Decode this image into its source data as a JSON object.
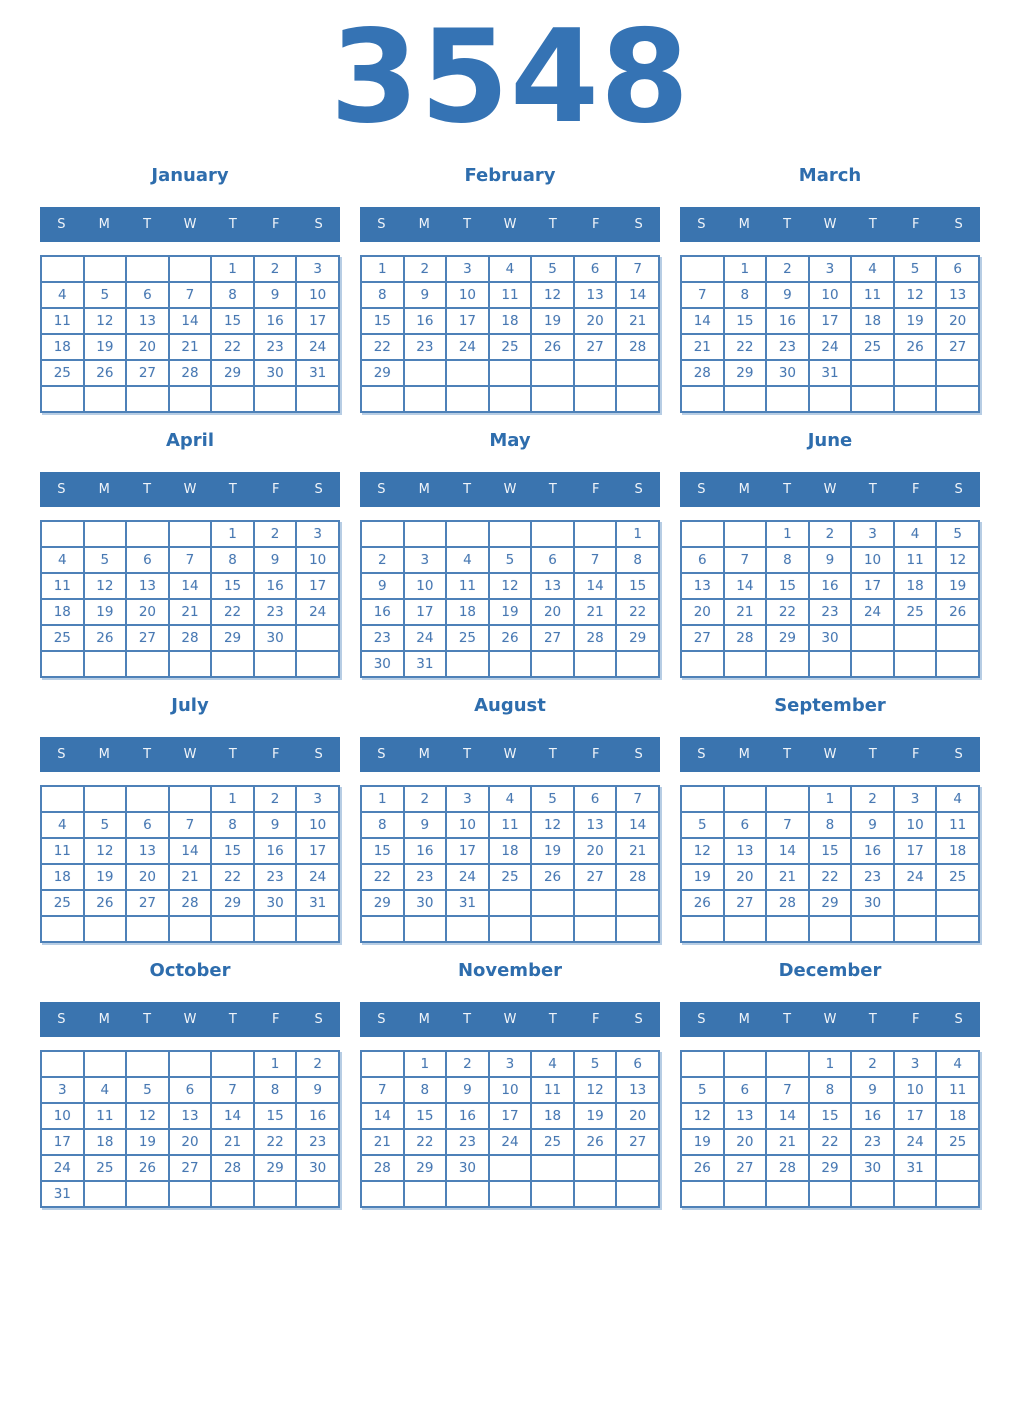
{
  "year": "3548",
  "weekday_headers": [
    "S",
    "M",
    "T",
    "W",
    "T",
    "F",
    "S"
  ],
  "colors": {
    "accent": "#3573b4",
    "month": "#2e6dad",
    "bar": "#3a74af",
    "bartext": "#f0f4f9",
    "border": "#4e81b8",
    "num": "#4878b2",
    "shadow": "#b7cde4"
  },
  "months": [
    {
      "name": "January",
      "weeks": [
        [
          "",
          "",
          "",
          "",
          "1",
          "2",
          "3"
        ],
        [
          "4",
          "5",
          "6",
          "7",
          "8",
          "9",
          "10"
        ],
        [
          "11",
          "12",
          "13",
          "14",
          "15",
          "16",
          "17"
        ],
        [
          "18",
          "19",
          "20",
          "21",
          "22",
          "23",
          "24"
        ],
        [
          "25",
          "26",
          "27",
          "28",
          "29",
          "30",
          "31"
        ],
        [
          "",
          "",
          "",
          "",
          "",
          "",
          ""
        ]
      ]
    },
    {
      "name": "February",
      "weeks": [
        [
          "1",
          "2",
          "3",
          "4",
          "5",
          "6",
          "7"
        ],
        [
          "8",
          "9",
          "10",
          "11",
          "12",
          "13",
          "14"
        ],
        [
          "15",
          "16",
          "17",
          "18",
          "19",
          "20",
          "21"
        ],
        [
          "22",
          "23",
          "24",
          "25",
          "26",
          "27",
          "28"
        ],
        [
          "29",
          "",
          "",
          "",
          "",
          "",
          ""
        ],
        [
          "",
          "",
          "",
          "",
          "",
          "",
          ""
        ]
      ]
    },
    {
      "name": "March",
      "weeks": [
        [
          "",
          "1",
          "2",
          "3",
          "4",
          "5",
          "6"
        ],
        [
          "7",
          "8",
          "9",
          "10",
          "11",
          "12",
          "13"
        ],
        [
          "14",
          "15",
          "16",
          "17",
          "18",
          "19",
          "20"
        ],
        [
          "21",
          "22",
          "23",
          "24",
          "25",
          "26",
          "27"
        ],
        [
          "28",
          "29",
          "30",
          "31",
          "",
          "",
          ""
        ],
        [
          "",
          "",
          "",
          "",
          "",
          "",
          ""
        ]
      ]
    },
    {
      "name": "April",
      "weeks": [
        [
          "",
          "",
          "",
          "",
          "1",
          "2",
          "3"
        ],
        [
          "4",
          "5",
          "6",
          "7",
          "8",
          "9",
          "10"
        ],
        [
          "11",
          "12",
          "13",
          "14",
          "15",
          "16",
          "17"
        ],
        [
          "18",
          "19",
          "20",
          "21",
          "22",
          "23",
          "24"
        ],
        [
          "25",
          "26",
          "27",
          "28",
          "29",
          "30",
          ""
        ],
        [
          "",
          "",
          "",
          "",
          "",
          "",
          ""
        ]
      ]
    },
    {
      "name": "May",
      "weeks": [
        [
          "",
          "",
          "",
          "",
          "",
          "",
          "1"
        ],
        [
          "2",
          "3",
          "4",
          "5",
          "6",
          "7",
          "8"
        ],
        [
          "9",
          "10",
          "11",
          "12",
          "13",
          "14",
          "15"
        ],
        [
          "16",
          "17",
          "18",
          "19",
          "20",
          "21",
          "22"
        ],
        [
          "23",
          "24",
          "25",
          "26",
          "27",
          "28",
          "29"
        ],
        [
          "30",
          "31",
          "",
          "",
          "",
          "",
          ""
        ]
      ]
    },
    {
      "name": "June",
      "weeks": [
        [
          "",
          "",
          "1",
          "2",
          "3",
          "4",
          "5"
        ],
        [
          "6",
          "7",
          "8",
          "9",
          "10",
          "11",
          "12"
        ],
        [
          "13",
          "14",
          "15",
          "16",
          "17",
          "18",
          "19"
        ],
        [
          "20",
          "21",
          "22",
          "23",
          "24",
          "25",
          "26"
        ],
        [
          "27",
          "28",
          "29",
          "30",
          "",
          "",
          ""
        ],
        [
          "",
          "",
          "",
          "",
          "",
          "",
          ""
        ]
      ]
    },
    {
      "name": "July",
      "weeks": [
        [
          "",
          "",
          "",
          "",
          "1",
          "2",
          "3"
        ],
        [
          "4",
          "5",
          "6",
          "7",
          "8",
          "9",
          "10"
        ],
        [
          "11",
          "12",
          "13",
          "14",
          "15",
          "16",
          "17"
        ],
        [
          "18",
          "19",
          "20",
          "21",
          "22",
          "23",
          "24"
        ],
        [
          "25",
          "26",
          "27",
          "28",
          "29",
          "30",
          "31"
        ],
        [
          "",
          "",
          "",
          "",
          "",
          "",
          ""
        ]
      ]
    },
    {
      "name": "August",
      "weeks": [
        [
          "1",
          "2",
          "3",
          "4",
          "5",
          "6",
          "7"
        ],
        [
          "8",
          "9",
          "10",
          "11",
          "12",
          "13",
          "14"
        ],
        [
          "15",
          "16",
          "17",
          "18",
          "19",
          "20",
          "21"
        ],
        [
          "22",
          "23",
          "24",
          "25",
          "26",
          "27",
          "28"
        ],
        [
          "29",
          "30",
          "31",
          "",
          "",
          "",
          ""
        ],
        [
          "",
          "",
          "",
          "",
          "",
          "",
          ""
        ]
      ]
    },
    {
      "name": "September",
      "weeks": [
        [
          "",
          "",
          "",
          "1",
          "2",
          "3",
          "4"
        ],
        [
          "5",
          "6",
          "7",
          "8",
          "9",
          "10",
          "11"
        ],
        [
          "12",
          "13",
          "14",
          "15",
          "16",
          "17",
          "18"
        ],
        [
          "19",
          "20",
          "21",
          "22",
          "23",
          "24",
          "25"
        ],
        [
          "26",
          "27",
          "28",
          "29",
          "30",
          "",
          ""
        ],
        [
          "",
          "",
          "",
          "",
          "",
          "",
          ""
        ]
      ]
    },
    {
      "name": "October",
      "weeks": [
        [
          "",
          "",
          "",
          "",
          "",
          "1",
          "2"
        ],
        [
          "3",
          "4",
          "5",
          "6",
          "7",
          "8",
          "9"
        ],
        [
          "10",
          "11",
          "12",
          "13",
          "14",
          "15",
          "16"
        ],
        [
          "17",
          "18",
          "19",
          "20",
          "21",
          "22",
          "23"
        ],
        [
          "24",
          "25",
          "26",
          "27",
          "28",
          "29",
          "30"
        ],
        [
          "31",
          "",
          "",
          "",
          "",
          "",
          ""
        ]
      ]
    },
    {
      "name": "November",
      "weeks": [
        [
          "",
          "1",
          "2",
          "3",
          "4",
          "5",
          "6"
        ],
        [
          "7",
          "8",
          "9",
          "10",
          "11",
          "12",
          "13"
        ],
        [
          "14",
          "15",
          "16",
          "17",
          "18",
          "19",
          "20"
        ],
        [
          "21",
          "22",
          "23",
          "24",
          "25",
          "26",
          "27"
        ],
        [
          "28",
          "29",
          "30",
          "",
          "",
          "",
          ""
        ],
        [
          "",
          "",
          "",
          "",
          "",
          "",
          ""
        ]
      ]
    },
    {
      "name": "December",
      "weeks": [
        [
          "",
          "",
          "",
          "1",
          "2",
          "3",
          "4"
        ],
        [
          "5",
          "6",
          "7",
          "8",
          "9",
          "10",
          "11"
        ],
        [
          "12",
          "13",
          "14",
          "15",
          "16",
          "17",
          "18"
        ],
        [
          "19",
          "20",
          "21",
          "22",
          "23",
          "24",
          "25"
        ],
        [
          "26",
          "27",
          "28",
          "29",
          "30",
          "31",
          ""
        ],
        [
          "",
          "",
          "",
          "",
          "",
          "",
          ""
        ]
      ]
    }
  ]
}
